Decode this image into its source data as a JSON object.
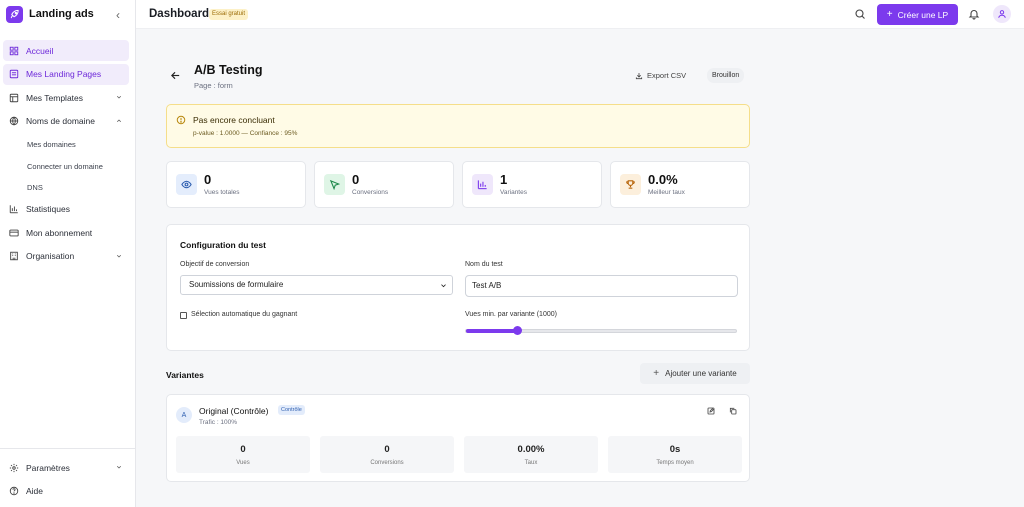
{
  "brand": {
    "name": "Landing ads"
  },
  "sidebar": {
    "items": [
      {
        "label": "Accueil",
        "icon": "grid-icon",
        "active": true
      },
      {
        "label": "Mes Landing Pages",
        "icon": "document-icon",
        "active": true
      },
      {
        "label": "Mes Templates",
        "icon": "template-icon",
        "chevron": "down"
      },
      {
        "label": "Noms de domaine",
        "icon": "globe-icon",
        "chevron": "up"
      },
      {
        "label": "Statistiques",
        "icon": "bar-chart-icon"
      },
      {
        "label": "Mon abonnement",
        "icon": "card-icon"
      },
      {
        "label": "Organisation",
        "icon": "building-icon",
        "chevron": "down"
      }
    ],
    "sub_items": [
      "Mes domaines",
      "Connecter un domaine",
      "DNS"
    ],
    "bottom": [
      {
        "label": "Paramètres",
        "icon": "gear-icon",
        "chevron": "down"
      },
      {
        "label": "Aide",
        "icon": "help-icon"
      }
    ]
  },
  "topbar": {
    "title": "Dashboard",
    "badge": "Essai gratuit",
    "create_label": "Créer une LP"
  },
  "page": {
    "title": "A/B Testing",
    "subtitle": "Page : form",
    "export_label": "Export CSV",
    "status": "Brouillon"
  },
  "alert": {
    "title": "Pas encore concluant",
    "text": "p-value : 1.0000 — Confiance : 95%"
  },
  "stats": [
    {
      "value": "0",
      "label": "Vues totales",
      "icon": "eye-icon",
      "color": "#e4edfc"
    },
    {
      "value": "0",
      "label": "Conversions",
      "icon": "cursor-icon",
      "color": "#dff5e6"
    },
    {
      "value": "1",
      "label": "Variantes",
      "icon": "bar-chart-icon",
      "color": "#efe7fb"
    },
    {
      "value": "0.0%",
      "label": "Meilleur taux",
      "icon": "trophy-icon",
      "color": "#fcefdc"
    }
  ],
  "config": {
    "title": "Configuration du test",
    "objective_label": "Objectif de conversion",
    "objective_value": "Soumissions de formulaire",
    "name_label": "Nom du test",
    "name_value": "Test A/B",
    "auto_label": "Sélection automatique du gagnant",
    "auto_checked": false,
    "min_views_label": "Vues min. par variante (1000)",
    "min_views_fraction": 0.19
  },
  "variants": {
    "title": "Variantes",
    "add_label": "Ajouter une variante",
    "items": [
      {
        "letter": "A",
        "name": "Original (Contrôle)",
        "badge": "Contrôle",
        "traffic": "Trafic : 100%",
        "metrics": [
          {
            "value": "0",
            "label": "Vues"
          },
          {
            "value": "0",
            "label": "Conversions"
          },
          {
            "value": "0.00%",
            "label": "Taux"
          },
          {
            "value": "0s",
            "label": "Temps moyen"
          }
        ]
      }
    ]
  },
  "colors": {
    "accent": "#7c3aed",
    "active_bg": "#f1ecfb",
    "alert_bg": "#fffbe6"
  }
}
